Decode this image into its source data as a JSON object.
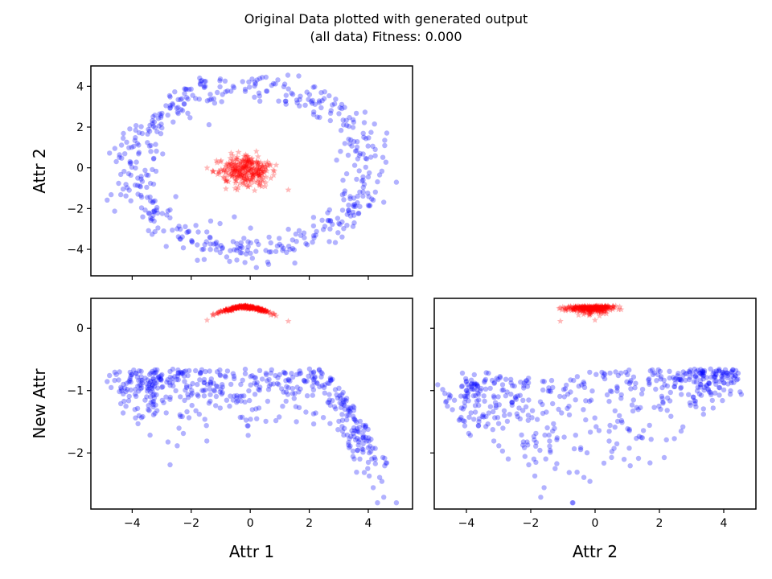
{
  "chart_data": {
    "type": "scatter",
    "title_lines": [
      "Original Data plotted with generated output",
      "(all data) Fitness: 0.000"
    ],
    "colors": {
      "original": "#0000ff",
      "generated": "#ff0000"
    },
    "markers": {
      "original": "circle",
      "generated": "star"
    },
    "panels": [
      {
        "id": "top",
        "xlabel": "",
        "ylabel": "Attr 2",
        "xlim": [
          -5.4,
          5.5
        ],
        "ylim": [
          -5.3,
          5.0
        ],
        "xticks": [
          -4,
          -2,
          0,
          2,
          4
        ],
        "yticks": [
          -4,
          -2,
          0,
          2,
          4
        ],
        "show_xtick_labels": false,
        "show_ytick_labels": true,
        "original_shape": "ring",
        "generated_shape": "cluster"
      },
      {
        "id": "bottom-left",
        "xlabel": "Attr 1",
        "ylabel": "New Attr",
        "xlim": [
          -5.4,
          5.5
        ],
        "ylim": [
          -2.9,
          0.48
        ],
        "xticks": [
          -4,
          -2,
          0,
          2,
          4
        ],
        "yticks": [
          -2,
          -1,
          0
        ],
        "show_xtick_labels": true,
        "show_ytick_labels": true,
        "original_shape": "curve-attr1",
        "generated_shape": "arc-attr1"
      },
      {
        "id": "bottom-right",
        "xlabel": "Attr 2",
        "ylabel": "",
        "xlim": [
          -5.0,
          5.0
        ],
        "ylim": [
          -2.9,
          0.48
        ],
        "xticks": [
          -4,
          -2,
          0,
          2,
          4
        ],
        "yticks": [
          -2,
          -1,
          0
        ],
        "show_xtick_labels": true,
        "show_ytick_labels": false,
        "original_shape": "curve-attr2",
        "generated_shape": "arc-attr2"
      }
    ],
    "series": [
      {
        "name": "",
        "role": "original",
        "points": 500
      },
      {
        "name": "",
        "role": "generated",
        "points": 300
      }
    ]
  }
}
